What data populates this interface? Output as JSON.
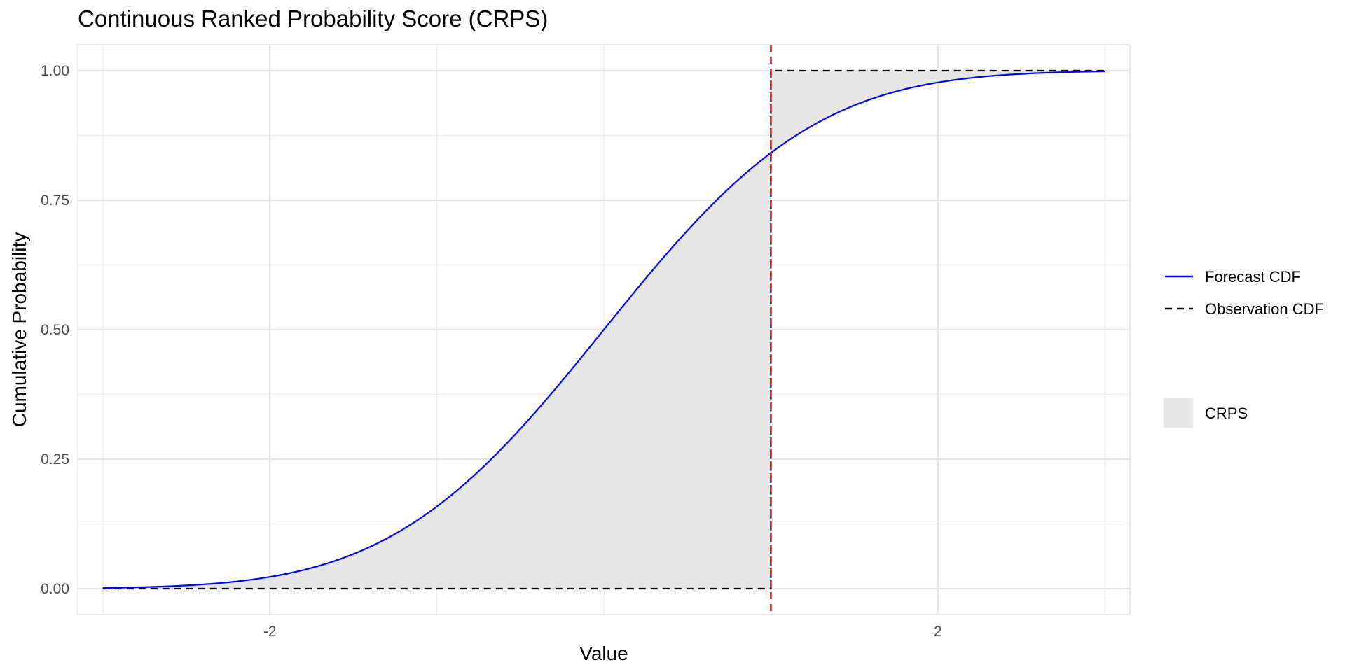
{
  "chart_data": {
    "type": "line",
    "title": "Continuous Ranked Probability Score (CRPS)",
    "xlabel": "Value",
    "ylabel": "Cumulative Probability",
    "xlim": [
      -3.15,
      3.15
    ],
    "ylim": [
      -0.05,
      1.05
    ],
    "x_ticks": [
      -2,
      2
    ],
    "x_tick_labels": [
      "-2",
      "2"
    ],
    "x_minor_ticks": [
      -3,
      -1,
      0,
      1,
      3
    ],
    "y_ticks": [
      0,
      0.25,
      0.5,
      0.75,
      1
    ],
    "y_tick_labels": [
      "0.00",
      "0.25",
      "0.50",
      "0.75",
      "1.00"
    ],
    "y_minor_ticks": [
      0.125,
      0.375,
      0.625,
      0.875
    ],
    "grid": true,
    "observation": 1,
    "x_range": [
      -3,
      3
    ],
    "series": [
      {
        "name": "Forecast CDF",
        "kind": "normal_cdf",
        "mean": 0,
        "sd": 1,
        "color": "#0000ff",
        "dash": "solid"
      },
      {
        "name": "Observation CDF",
        "kind": "step",
        "step_at": 1,
        "color": "#000000",
        "dash": "dashed"
      }
    ],
    "fill": {
      "name": "CRPS",
      "color": "#e6e6e6"
    },
    "vline": {
      "x": 1,
      "color": "#ff0000",
      "dash": "dashed"
    },
    "legend": {
      "position": "right",
      "lines": [
        {
          "label": "Forecast CDF",
          "color": "#0000ff",
          "dash": "solid"
        },
        {
          "label": "Observation CDF",
          "color": "#000000",
          "dash": "dashed"
        }
      ],
      "fill": {
        "label": "CRPS",
        "color": "#e6e6e6"
      }
    }
  }
}
